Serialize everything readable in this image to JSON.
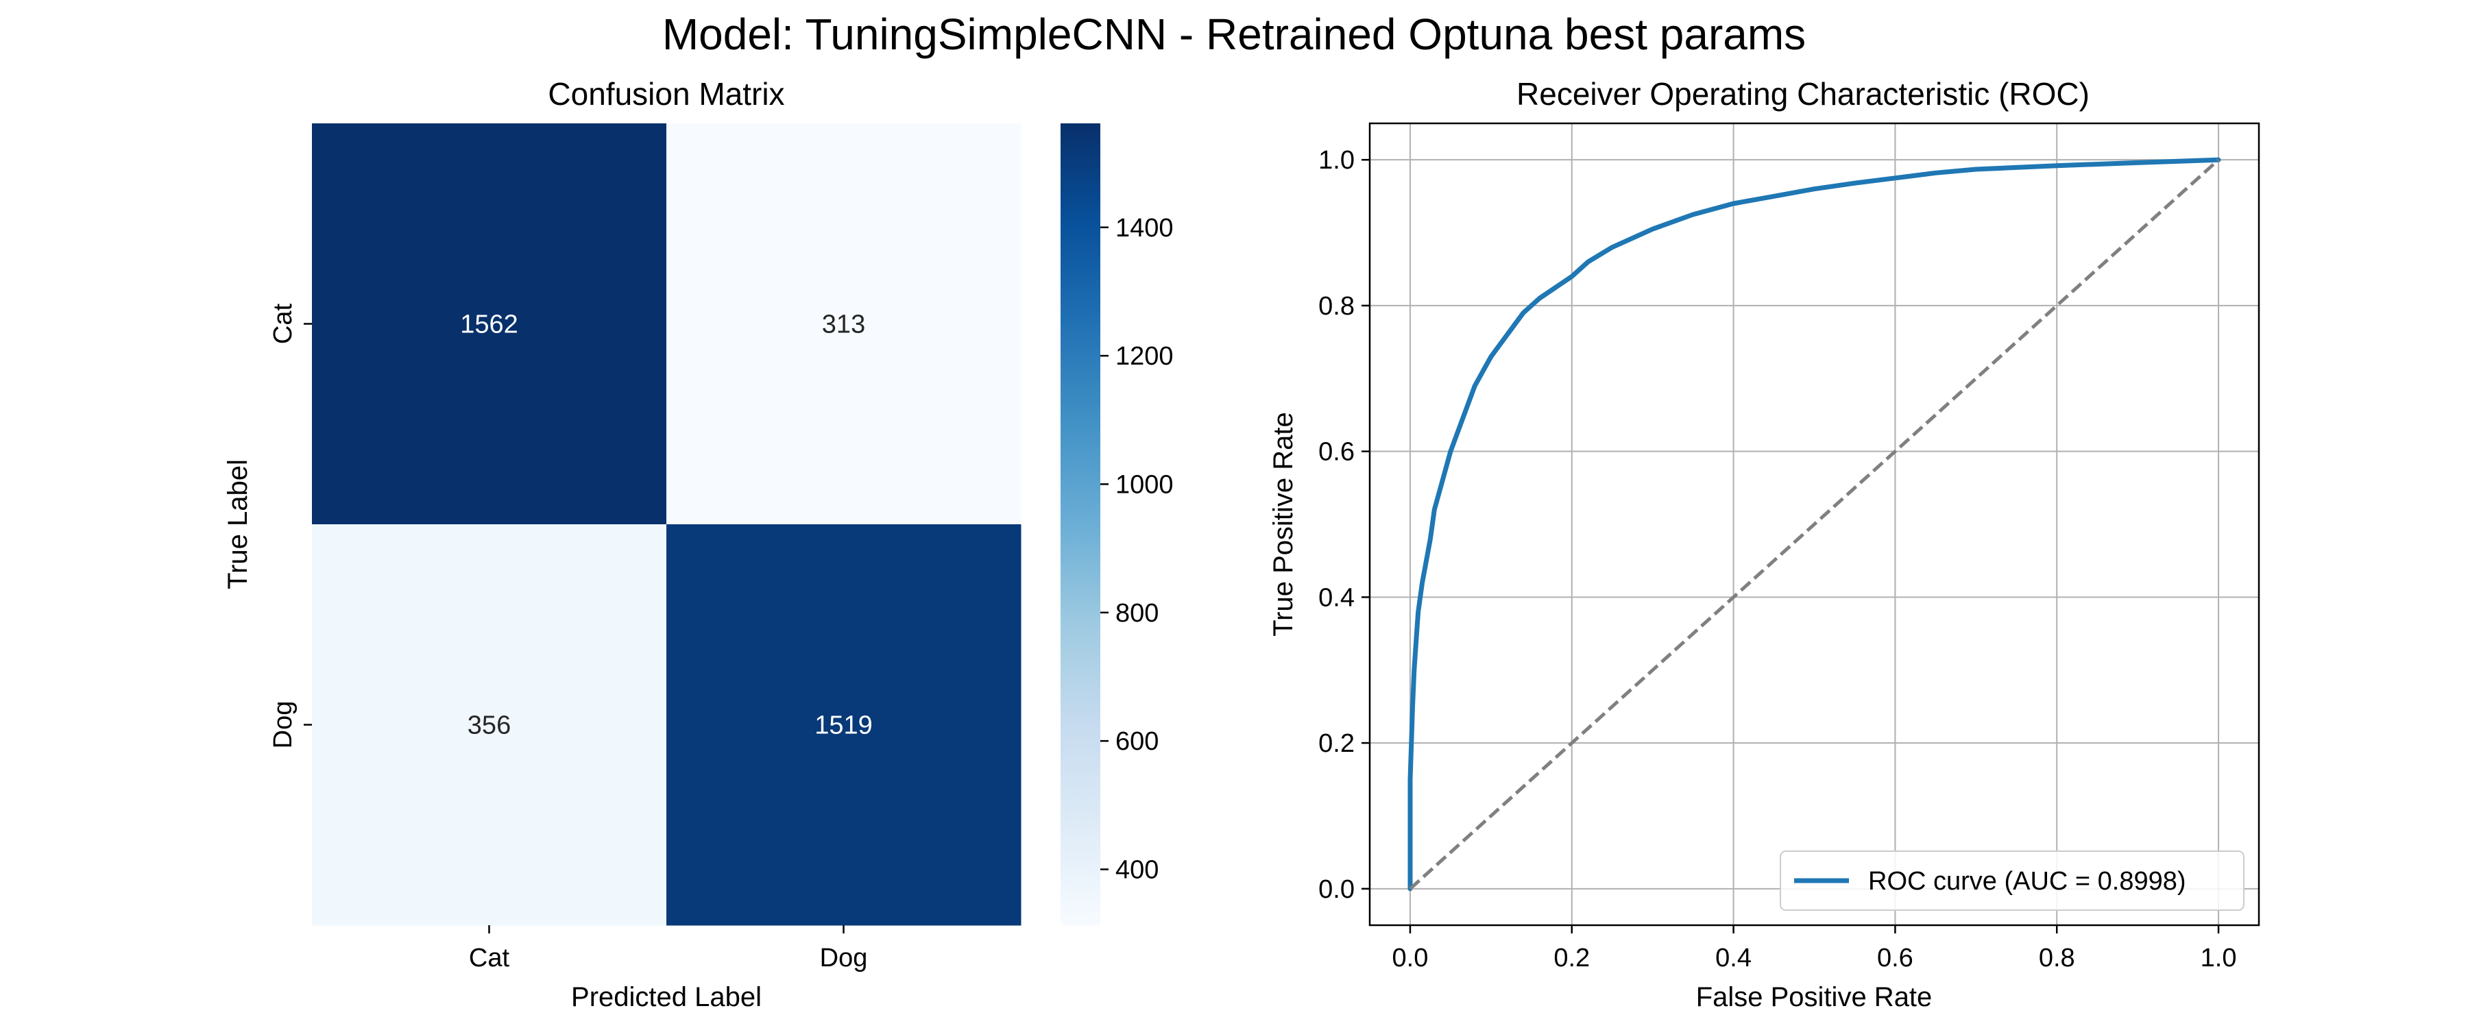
{
  "figure": {
    "title": "Model: TuningSimpleCNN - Retrained Optuna best params"
  },
  "chart_data": [
    {
      "type": "heatmap",
      "title": "Confusion Matrix",
      "xlabel": "Predicted Label",
      "ylabel": "True Label",
      "x_categories": [
        "Cat",
        "Dog"
      ],
      "y_categories": [
        "Cat",
        "Dog"
      ],
      "values": [
        [
          1562,
          313
        ],
        [
          356,
          1519
        ]
      ],
      "colormap": "Blues",
      "colorbar": {
        "range": [
          313,
          1562
        ],
        "ticks": [
          400,
          600,
          800,
          1000,
          1200,
          1400
        ]
      }
    },
    {
      "type": "line",
      "title": "Receiver Operating Characteristic (ROC)",
      "xlabel": "False Positive Rate",
      "ylabel": "True Positive Rate",
      "xlim": [
        -0.05,
        1.05
      ],
      "ylim": [
        -0.05,
        1.05
      ],
      "xticks": [
        "0.0",
        "0.2",
        "0.4",
        "0.6",
        "0.8",
        "1.0"
      ],
      "yticks": [
        "0.0",
        "0.2",
        "0.4",
        "0.6",
        "0.8",
        "1.0"
      ],
      "grid": true,
      "legend_position": "lower-right",
      "series": [
        {
          "name": "ROC curve (AUC = 0.8998)",
          "color": "#1f77b4",
          "x": [
            0.0,
            0.0,
            0.003,
            0.005,
            0.008,
            0.01,
            0.015,
            0.02,
            0.025,
            0.03,
            0.04,
            0.05,
            0.06,
            0.07,
            0.08,
            0.09,
            0.1,
            0.12,
            0.14,
            0.16,
            0.18,
            0.2,
            0.22,
            0.25,
            0.3,
            0.35,
            0.4,
            0.45,
            0.5,
            0.55,
            0.6,
            0.65,
            0.7,
            0.8,
            0.9,
            1.0
          ],
          "y": [
            0.0,
            0.15,
            0.25,
            0.3,
            0.35,
            0.38,
            0.42,
            0.45,
            0.48,
            0.52,
            0.56,
            0.6,
            0.63,
            0.66,
            0.69,
            0.71,
            0.73,
            0.76,
            0.79,
            0.81,
            0.825,
            0.84,
            0.86,
            0.88,
            0.905,
            0.925,
            0.94,
            0.95,
            0.96,
            0.968,
            0.975,
            0.982,
            0.987,
            0.992,
            0.996,
            1.0
          ]
        },
        {
          "name": "",
          "color": "#808080",
          "dashed": true,
          "x": [
            0.0,
            1.0
          ],
          "y": [
            0.0,
            1.0
          ]
        }
      ]
    }
  ]
}
